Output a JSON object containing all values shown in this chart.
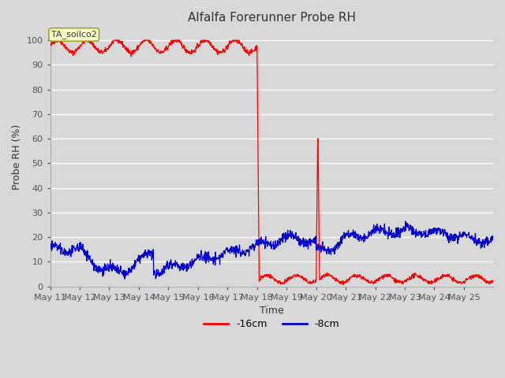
{
  "title": "Alfalfa Forerunner Probe RH",
  "xlabel": "Time",
  "ylabel": "Probe RH (%)",
  "ylim": [
    0,
    105
  ],
  "yticks": [
    0,
    10,
    20,
    30,
    40,
    50,
    60,
    70,
    80,
    90,
    100
  ],
  "bg_color": "#d8d8d8",
  "plot_bg_color": "#d8d8d8",
  "grid_color": "#ffffff",
  "line_color_16cm": "#ff0000",
  "line_color_8cm": "#0000cc",
  "legend_label_16cm": "-16cm",
  "legend_label_8cm": "-8cm",
  "annotation_text": "TA_soilco2",
  "annotation_bbox_face": "#ffffcc",
  "annotation_bbox_edge": "#999900",
  "title_fontsize": 11,
  "axis_label_fontsize": 9,
  "tick_fontsize": 8
}
